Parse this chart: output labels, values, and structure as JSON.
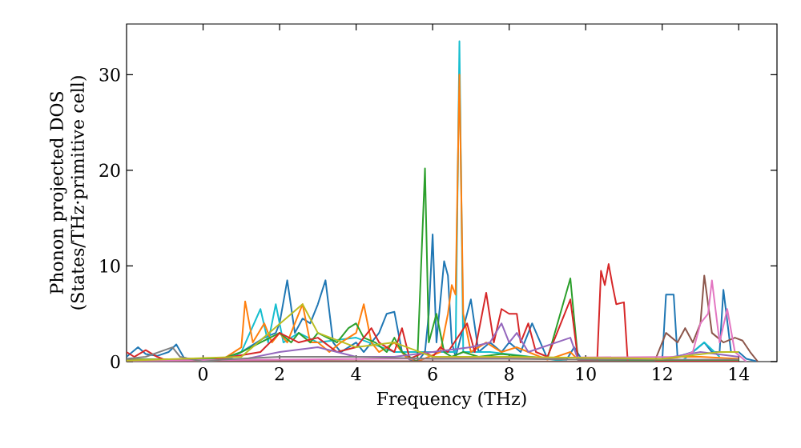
{
  "chart_data": {
    "type": "line",
    "xlabel": "Frequency (THz)",
    "ylabel": "Phonon projected DOS (States/THz·primitive cell)",
    "xlim": [
      -2,
      15
    ],
    "ylim": [
      0,
      35.3
    ],
    "xticks": [
      0,
      2,
      4,
      6,
      8,
      10,
      12,
      14
    ],
    "yticks": [
      0,
      10,
      20,
      30
    ],
    "grid": false,
    "marker": "none",
    "line_style": "solid",
    "series": [
      {
        "color": "#1f77b4",
        "x": [
          -2,
          -1.7,
          -1.5,
          -1.2,
          -0.9,
          -0.7,
          -0.5,
          -0.2,
          0,
          0.4,
          0.8,
          1.2,
          1.6,
          1.9,
          2.0,
          2.2,
          2.4,
          2.6,
          2.8,
          3.0,
          3.2,
          3.4,
          3.6,
          3.8,
          4.0,
          4.2,
          4.4,
          4.6,
          4.8,
          5.0,
          5.2,
          5.4,
          5.6,
          5.8,
          5.9,
          6.0,
          6.1,
          6.3,
          6.4,
          6.5,
          6.6,
          7.0,
          7.2,
          7.5,
          7.8,
          8.0,
          8.3,
          8.6,
          9.0,
          9.5,
          9.7,
          9.9,
          10.5,
          11,
          11.5,
          12.0,
          12.1,
          12.3,
          12.4,
          12.8,
          13.1,
          13.3,
          13.5,
          13.6,
          13.8,
          14.0,
          14.2,
          14.5
        ],
        "values": [
          0.5,
          1.5,
          0.8,
          0.6,
          1.0,
          1.8,
          0.4,
          0.1,
          0,
          0,
          0.5,
          1.5,
          2.5,
          3,
          4,
          8.5,
          3,
          4.5,
          4,
          6,
          8.5,
          2,
          1,
          1.5,
          2,
          1,
          2,
          3,
          5,
          5.2,
          1,
          0.2,
          0,
          1,
          5,
          13.3,
          2,
          10.5,
          9,
          2,
          0.5,
          6.5,
          1,
          2,
          1,
          2,
          1,
          4,
          0.3,
          0.2,
          1.5,
          0.2,
          0.3,
          0.3,
          0,
          0,
          7,
          7,
          0.5,
          1,
          2,
          1,
          1,
          7.5,
          1,
          1,
          0.3,
          0
        ]
      },
      {
        "color": "#17becf",
        "x": [
          -2,
          0.5,
          1.0,
          1.5,
          1.7,
          1.9,
          2.1,
          2.5,
          3,
          4,
          5,
          6,
          6.6,
          6.7,
          6.8,
          7.5,
          9,
          9.5,
          12.5,
          13.1,
          13.5
        ],
        "values": [
          0.1,
          0,
          1,
          5.5,
          2,
          6,
          2,
          3,
          2,
          2.5,
          1,
          1,
          1,
          33.5,
          1,
          1,
          0.3,
          0,
          0,
          2,
          0.5
        ]
      },
      {
        "color": "#ff7f0e",
        "x": [
          -2,
          0.5,
          1.0,
          1.1,
          1.3,
          1.6,
          1.8,
          2.0,
          2.2,
          2.4,
          2.6,
          2.8,
          3.0,
          3.3,
          3.6,
          4.0,
          4.1,
          4.2,
          4.4,
          4.6,
          5.0,
          5.3,
          5.6,
          5.9,
          6.2,
          6.4,
          6.5,
          6.6,
          6.7,
          6.8,
          7.0,
          7.4,
          7.8,
          8.2,
          8.5,
          9.0,
          9.6,
          9.8,
          12.0,
          12.5,
          13,
          14
        ],
        "values": [
          0.2,
          0.2,
          1.5,
          6.3,
          2,
          4,
          2,
          3,
          2,
          4,
          6,
          2,
          2,
          1,
          2,
          3,
          4.5,
          6,
          2,
          1,
          2,
          0.5,
          0,
          0.5,
          1,
          5,
          8,
          7,
          30,
          5,
          1,
          2,
          1,
          1.5,
          1,
          0.2,
          1,
          0.2,
          0.2,
          0.5,
          0.5,
          0.3
        ]
      },
      {
        "color": "#2ca02c",
        "x": [
          -2,
          0.5,
          1.0,
          1.5,
          2.0,
          2.3,
          2.5,
          2.8,
          3.0,
          3.5,
          3.8,
          4.0,
          4.2,
          4.5,
          4.8,
          5.0,
          5.2,
          5.6,
          5.8,
          5.9,
          6.1,
          6.3,
          6.5,
          6.8,
          7.2,
          7.8,
          8.5,
          9.0,
          9.6,
          9.8,
          10.5,
          14
        ],
        "values": [
          0.2,
          0.3,
          1,
          2,
          3,
          2,
          3,
          2,
          3,
          2,
          3.5,
          4,
          2.5,
          2,
          1,
          2.5,
          1,
          0,
          20.2,
          2,
          5,
          1,
          0.5,
          1,
          0.5,
          0.8,
          0.5,
          0.3,
          8.7,
          0.2,
          0.1,
          0.1
        ]
      },
      {
        "color": "#d62728",
        "x": [
          -2,
          -1.8,
          -1.5,
          -1.2,
          -1,
          0,
          1.5,
          2,
          2.5,
          3,
          3.5,
          4,
          4.4,
          4.6,
          5.0,
          5.2,
          5.4,
          5.8,
          6.0,
          6.2,
          6.4,
          6.9,
          7.1,
          7.4,
          7.6,
          7.8,
          8.0,
          8.2,
          8.3,
          8.5,
          8.7,
          9.0,
          9.6,
          9.8,
          10.3,
          10.4,
          10.5,
          10.6,
          10.7,
          10.8,
          11.0,
          11.1,
          14
        ],
        "values": [
          1,
          0.5,
          1.2,
          0.5,
          0.2,
          0,
          1,
          3,
          2,
          2.5,
          1,
          1.5,
          3.5,
          2,
          1,
          3.5,
          0.3,
          1,
          0.5,
          1.5,
          1,
          4,
          1,
          7.2,
          2,
          5.5,
          5,
          5,
          2,
          4,
          1,
          0.5,
          6.5,
          0.2,
          0,
          9.5,
          8,
          10.2,
          8,
          6,
          6.2,
          0,
          0
        ]
      },
      {
        "color": "#9467bd",
        "x": [
          -2,
          1,
          2,
          3,
          4,
          5,
          6,
          7,
          7.5,
          7.8,
          8.0,
          8.2,
          8.5,
          9.6,
          9.8,
          12,
          13,
          14
        ],
        "values": [
          0.1,
          0.2,
          1,
          1.5,
          0.5,
          0.5,
          1,
          1.5,
          2,
          4,
          2,
          3,
          1,
          2.5,
          0.2,
          0.3,
          1,
          0.5
        ]
      },
      {
        "color": "#8c564b",
        "x": [
          -2,
          11.8,
          12.1,
          12.4,
          12.6,
          12.8,
          13.0,
          13.1,
          13.3,
          13.6,
          13.9,
          14.1,
          14.3,
          14.5
        ],
        "values": [
          0.1,
          0,
          3,
          2,
          3.5,
          2,
          4,
          9,
          3,
          2,
          2.5,
          2.2,
          1,
          0
        ]
      },
      {
        "color": "#e377c2",
        "x": [
          -2,
          12.5,
          12.8,
          13.0,
          13.2,
          13.3,
          13.5,
          13.7,
          13.9,
          14.2
        ],
        "values": [
          0.1,
          0.5,
          1,
          4,
          5,
          8.5,
          2,
          5.5,
          1,
          0
        ]
      },
      {
        "color": "#7f7f7f",
        "x": [
          -2,
          -1.5,
          -0.8,
          -0.6,
          0,
          0.5,
          2,
          4,
          6,
          8,
          10,
          12,
          14
        ],
        "values": [
          0.3,
          0.5,
          1.5,
          0.5,
          0,
          0.2,
          0.5,
          0.5,
          0.3,
          0.3,
          0.2,
          0.2,
          0.2
        ]
      },
      {
        "color": "#bcbd22",
        "x": [
          -2,
          1,
          2.6,
          3,
          4,
          5,
          6,
          8,
          12,
          13.5,
          14
        ],
        "values": [
          0.1,
          0.5,
          6,
          3,
          1.5,
          2,
          0.5,
          0.5,
          0.3,
          1,
          1
        ]
      }
    ]
  }
}
